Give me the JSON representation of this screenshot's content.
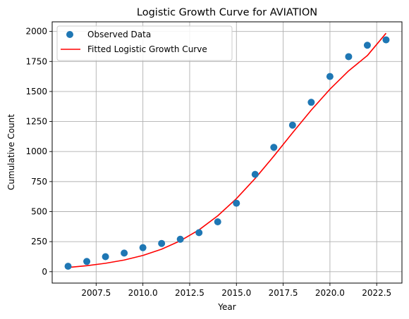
{
  "chart_data": {
    "type": "scatter",
    "title": "Logistic Growth Curve for AVIATION",
    "xlabel": "Year",
    "ylabel": "Cumulative Count",
    "xlim": [
      2005.15,
      2023.85
    ],
    "ylim": [
      -95,
      2080
    ],
    "grid": true,
    "legend_position": "top-left",
    "x_ticks": [
      2007.5,
      2010.0,
      2012.5,
      2015.0,
      2017.5,
      2020.0,
      2022.5
    ],
    "x_tick_labels": [
      "2007.5",
      "2010.0",
      "2012.5",
      "2015.0",
      "2017.5",
      "2020.0",
      "2022.5"
    ],
    "y_ticks": [
      0,
      250,
      500,
      750,
      1000,
      1250,
      1500,
      1750,
      2000
    ],
    "y_tick_labels": [
      "0",
      "250",
      "500",
      "750",
      "1000",
      "1250",
      "1500",
      "1750",
      "2000"
    ],
    "series": [
      {
        "name": "Observed Data",
        "kind": "scatter",
        "color": "#1f77b4",
        "x": [
          2006,
          2007,
          2008,
          2009,
          2010,
          2011,
          2012,
          2013,
          2014,
          2015,
          2016,
          2017,
          2018,
          2019,
          2020,
          2021,
          2022,
          2023
        ],
        "y": [
          45,
          85,
          125,
          155,
          200,
          235,
          270,
          325,
          415,
          570,
          810,
          1035,
          1220,
          1410,
          1625,
          1790,
          1885,
          1930
        ]
      },
      {
        "name": "Fitted Logistic Growth Curve",
        "kind": "line",
        "color": "#ff0000",
        "x": [
          2006,
          2007,
          2008,
          2009,
          2010,
          2011,
          2012,
          2013,
          2014,
          2015,
          2016,
          2017,
          2018,
          2019,
          2020,
          2021,
          2022,
          2023
        ],
        "y": [
          35,
          50,
          70,
          97,
          135,
          187,
          257,
          348,
          465,
          608,
          776,
          962,
          1156,
          1345,
          1519,
          1672,
          1799,
          1985
        ]
      }
    ]
  }
}
